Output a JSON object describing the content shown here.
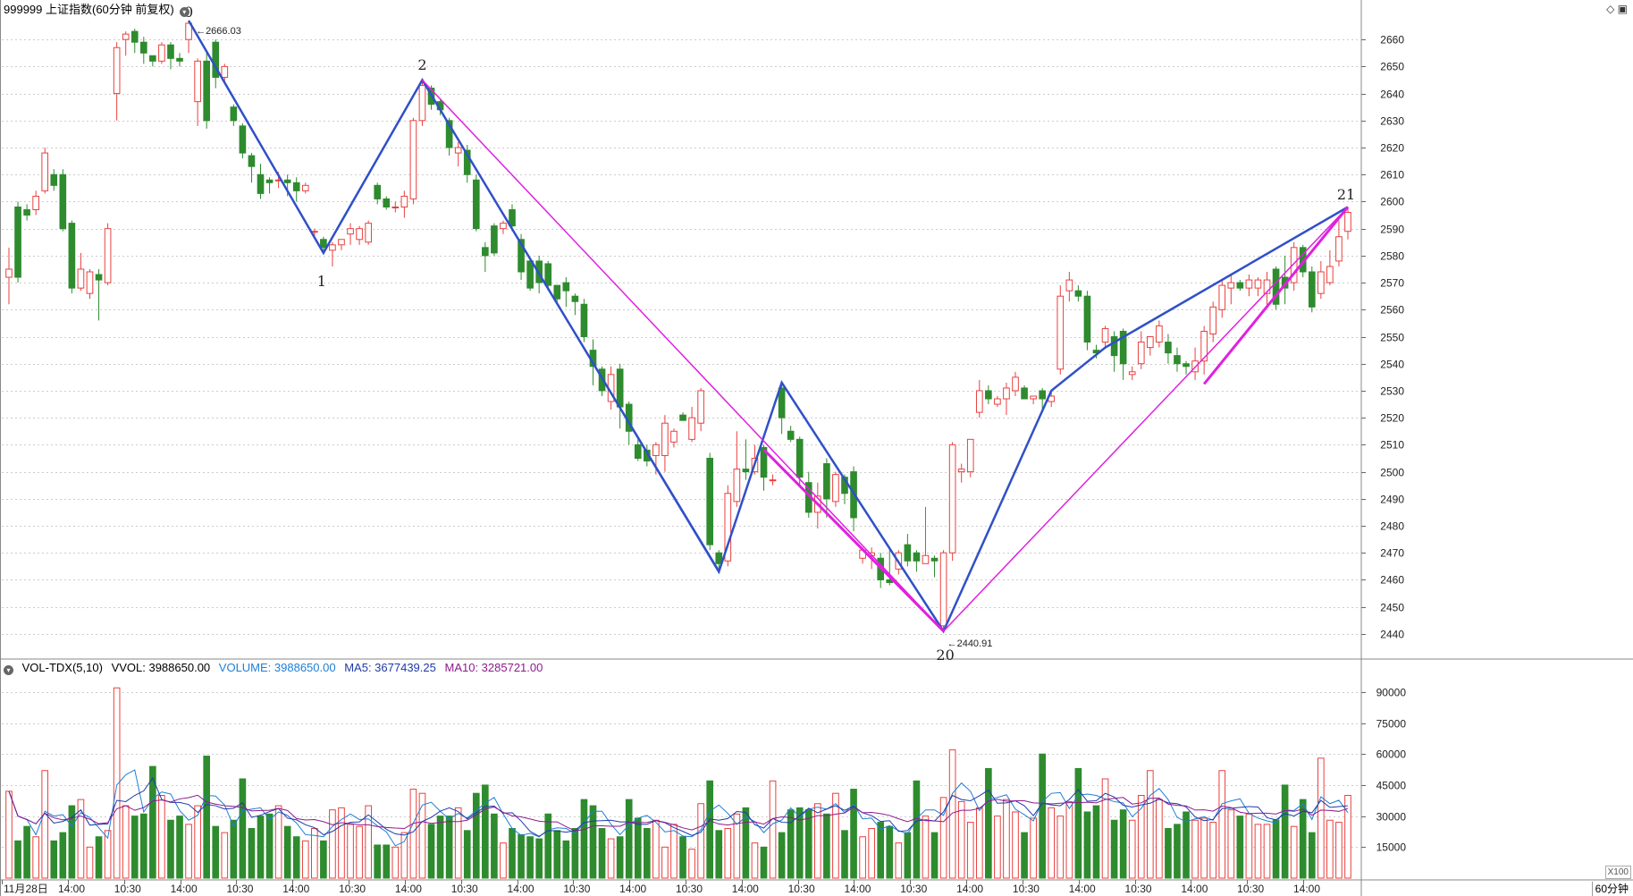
{
  "header": {
    "title": "999999 上证指数(60分钟 前复权)"
  },
  "volume_header": {
    "indicator": "VOL-TDX(5,10)",
    "vvol": "VVOL: 3988650.00",
    "volume": "VOLUME: 3988650.00",
    "ma5": "MA5: 3677439.25",
    "ma10": "MA10: 3285721.00"
  },
  "period_label": "60分钟",
  "scale_label": "X100",
  "colors": {
    "up": "#e8413f",
    "down": "#2e8b2e",
    "volume_line": "#1e7fd6",
    "ma5_line": "#1f3aa8",
    "ma10_line": "#8e1a8e",
    "wave_blue": "#3050c8",
    "wave_magenta": "#e020e0",
    "grid": "#cccccc"
  },
  "chart_data": [
    {
      "type": "candlestick",
      "title": "999999 上证指数(60分钟 前复权)",
      "ylim": [
        2434,
        2668
      ],
      "y_ticks": [
        2440,
        2450,
        2460,
        2470,
        2480,
        2490,
        2500,
        2510,
        2520,
        2530,
        2540,
        2550,
        2560,
        2570,
        2580,
        2590,
        2600,
        2610,
        2620,
        2630,
        2640,
        2650,
        2660
      ],
      "x_tick_labels": [
        "11月28日",
        "14:00",
        "10:30",
        "14:00",
        "10:30",
        "14:00",
        "10:30",
        "14:00",
        "10:30",
        "14:00",
        "10:30",
        "14:00",
        "10:30",
        "14:00",
        "10:30",
        "14:00",
        "10:30",
        "14:00",
        "10:30",
        "14:00",
        "10:30",
        "14:00",
        "10:30",
        "14:00"
      ],
      "candles": [
        [
          2572,
          2575,
          2562,
          2583
        ],
        [
          2598,
          2572,
          2570,
          2600
        ],
        [
          2597,
          2595,
          2593,
          2599
        ],
        [
          2597,
          2602,
          2595,
          2604
        ],
        [
          2604,
          2618,
          2603,
          2620
        ],
        [
          2610,
          2606,
          2604,
          2612
        ],
        [
          2610,
          2590,
          2589,
          2612
        ],
        [
          2592,
          2568,
          2566,
          2593
        ],
        [
          2568,
          2575,
          2567,
          2581
        ],
        [
          2566,
          2574,
          2564,
          2575
        ],
        [
          2573,
          2571,
          2556,
          2575
        ],
        [
          2570,
          2590,
          2569,
          2592
        ],
        [
          2640,
          2657,
          2630,
          2659
        ],
        [
          2660,
          2662,
          2654,
          2663
        ],
        [
          2663,
          2659,
          2655,
          2664
        ],
        [
          2659,
          2655,
          2651,
          2661
        ],
        [
          2654,
          2652,
          2650,
          2654
        ],
        [
          2652,
          2658,
          2651,
          2659
        ],
        [
          2658,
          2653,
          2649,
          2659
        ],
        [
          2653,
          2652,
          2650,
          2655
        ],
        [
          2660,
          2666,
          2655,
          2667
        ],
        [
          2637,
          2652,
          2628,
          2653
        ],
        [
          2652,
          2630,
          2627,
          2656
        ],
        [
          2659,
          2646,
          2642,
          2660
        ],
        [
          2646,
          2650,
          2644,
          2651
        ],
        [
          2635,
          2630,
          2628,
          2636
        ],
        [
          2628,
          2618,
          2616,
          2629
        ],
        [
          2617,
          2613,
          2607,
          2618
        ],
        [
          2610,
          2603,
          2601,
          2614
        ],
        [
          2608,
          2607,
          2603,
          2609
        ],
        [
          2608,
          2608,
          2605,
          2611
        ],
        [
          2608,
          2607,
          2602,
          2610
        ],
        [
          2607,
          2604,
          2600,
          2609
        ],
        [
          2604,
          2606,
          2603,
          2607
        ],
        [
          2589,
          2589,
          2587,
          2590
        ],
        [
          2586,
          2583,
          2581,
          2587
        ],
        [
          2582,
          2584,
          2576,
          2585
        ],
        [
          2584,
          2586,
          2582,
          2586
        ],
        [
          2588,
          2590,
          2584,
          2592
        ],
        [
          2586,
          2590,
          2584,
          2591
        ],
        [
          2585,
          2592,
          2584,
          2593
        ],
        [
          2606,
          2601,
          2599,
          2607
        ],
        [
          2601,
          2598,
          2597,
          2602
        ],
        [
          2598,
          2598,
          2596,
          2600
        ],
        [
          2598,
          2602,
          2594,
          2604
        ],
        [
          2601,
          2630,
          2599,
          2631
        ],
        [
          2630,
          2643,
          2628,
          2645
        ],
        [
          2642,
          2636,
          2634,
          2643
        ],
        [
          2637,
          2634,
          2632,
          2638
        ],
        [
          2630,
          2620,
          2617,
          2631
        ],
        [
          2618,
          2620,
          2613,
          2622
        ],
        [
          2619,
          2610,
          2607,
          2621
        ],
        [
          2608,
          2590,
          2589,
          2610
        ],
        [
          2583,
          2580,
          2574,
          2585
        ],
        [
          2591,
          2581,
          2580,
          2592
        ],
        [
          2590,
          2592,
          2588,
          2593
        ],
        [
          2597,
          2591,
          2589,
          2599
        ],
        [
          2586,
          2574,
          2571,
          2588
        ],
        [
          2578,
          2568,
          2567,
          2579
        ],
        [
          2578,
          2570,
          2566,
          2580
        ],
        [
          2577,
          2569,
          2567,
          2578
        ],
        [
          2569,
          2564,
          2562,
          2569
        ],
        [
          2570,
          2567,
          2561,
          2572
        ],
        [
          2565,
          2563,
          2558,
          2566
        ],
        [
          2562,
          2550,
          2548,
          2564
        ],
        [
          2545,
          2539,
          2532,
          2549
        ],
        [
          2538,
          2530,
          2528,
          2539
        ],
        [
          2526,
          2536,
          2523,
          2539
        ],
        [
          2538,
          2524,
          2516,
          2540
        ],
        [
          2525,
          2515,
          2510,
          2526
        ],
        [
          2510,
          2505,
          2504,
          2512
        ],
        [
          2508,
          2504,
          2502,
          2510
        ],
        [
          2506,
          2510,
          2499,
          2511
        ],
        [
          2506,
          2518,
          2500,
          2521
        ],
        [
          2511,
          2515,
          2509,
          2516
        ],
        [
          2521,
          2519,
          2519,
          2522
        ],
        [
          2512,
          2520,
          2511,
          2524
        ],
        [
          2518,
          2530,
          2515,
          2531
        ],
        [
          2505,
          2473,
          2471,
          2507
        ],
        [
          2470,
          2466,
          2463,
          2471
        ],
        [
          2467,
          2492,
          2465,
          2495
        ],
        [
          2489,
          2501,
          2487,
          2515
        ],
        [
          2501,
          2500,
          2497,
          2512
        ],
        [
          2500,
          2505,
          2499,
          2510
        ],
        [
          2509,
          2498,
          2493,
          2510
        ],
        [
          2497,
          2497,
          2495,
          2499
        ],
        [
          2531,
          2520,
          2514,
          2533
        ],
        [
          2515,
          2512,
          2511,
          2517
        ],
        [
          2512,
          2498,
          2495,
          2513
        ],
        [
          2496,
          2485,
          2483,
          2500
        ],
        [
          2485,
          2491,
          2479,
          2496
        ],
        [
          2503,
          2490,
          2483,
          2505
        ],
        [
          2489,
          2499,
          2487,
          2500
        ],
        [
          2498,
          2492,
          2488,
          2499
        ],
        [
          2500,
          2483,
          2478,
          2502
        ],
        [
          2468,
          2471,
          2466,
          2472
        ],
        [
          2469,
          2470,
          2464,
          2472
        ],
        [
          2468,
          2460,
          2457,
          2470
        ],
        [
          2460,
          2459,
          2458,
          2472
        ],
        [
          2464,
          2470,
          2462,
          2471
        ],
        [
          2473,
          2467,
          2465,
          2477
        ],
        [
          2470,
          2467,
          2463,
          2471
        ],
        [
          2466,
          2469,
          2466,
          2487
        ],
        [
          2468,
          2467,
          2461,
          2469
        ],
        [
          2443,
          2470,
          2441,
          2471
        ],
        [
          2470,
          2510,
          2467,
          2511
        ],
        [
          2500,
          2501,
          2496,
          2503
        ],
        [
          2500,
          2512,
          2498,
          2512
        ],
        [
          2522,
          2530,
          2520,
          2534
        ],
        [
          2530,
          2527,
          2525,
          2532
        ],
        [
          2525,
          2527,
          2524,
          2528
        ],
        [
          2527,
          2531,
          2521,
          2533
        ],
        [
          2530,
          2535,
          2528,
          2537
        ],
        [
          2531,
          2527,
          2527,
          2532
        ],
        [
          2527,
          2528,
          2525,
          2528
        ],
        [
          2530,
          2527,
          2523,
          2531
        ],
        [
          2526,
          2528,
          2524,
          2530
        ],
        [
          2538,
          2565,
          2536,
          2569
        ],
        [
          2567,
          2571,
          2563,
          2574
        ],
        [
          2567,
          2565,
          2563,
          2569
        ],
        [
          2565,
          2548,
          2545,
          2567
        ],
        [
          2545,
          2544,
          2542,
          2547
        ],
        [
          2548,
          2553,
          2546,
          2554
        ],
        [
          2550,
          2543,
          2537,
          2552
        ],
        [
          2552,
          2540,
          2534,
          2553
        ],
        [
          2536,
          2537,
          2534,
          2539
        ],
        [
          2540,
          2548,
          2538,
          2552
        ],
        [
          2546,
          2550,
          2543,
          2550
        ],
        [
          2548,
          2554,
          2546,
          2556
        ],
        [
          2548,
          2544,
          2540,
          2551
        ],
        [
          2543,
          2540,
          2537,
          2546
        ],
        [
          2540,
          2539,
          2536,
          2541
        ],
        [
          2537,
          2541,
          2534,
          2546
        ],
        [
          2541,
          2552,
          2536,
          2554
        ],
        [
          2551,
          2561,
          2548,
          2563
        ],
        [
          2560,
          2569,
          2557,
          2571
        ],
        [
          2568,
          2570,
          2562,
          2573
        ],
        [
          2570,
          2568,
          2567,
          2571
        ],
        [
          2568,
          2571,
          2565,
          2573
        ],
        [
          2568,
          2571,
          2565,
          2572
        ],
        [
          2566,
          2571,
          2561,
          2574
        ],
        [
          2575,
          2562,
          2560,
          2576
        ],
        [
          2572,
          2568,
          2562,
          2580
        ],
        [
          2570,
          2583,
          2567,
          2585
        ],
        [
          2583,
          2574,
          2572,
          2584
        ],
        [
          2574,
          2561,
          2559,
          2576
        ],
        [
          2566,
          2574,
          2564,
          2578
        ],
        [
          2570,
          2576,
          2569,
          2582
        ],
        [
          2578,
          2587,
          2576,
          2593
        ],
        [
          2589,
          2596,
          2586,
          2598
        ]
      ],
      "labels": {
        "high_price": "2666.03",
        "low_price": "2440.91",
        "wave_0": "0",
        "wave_1": "1",
        "wave_2": "2",
        "wave_20": "20",
        "wave_21": "21"
      }
    },
    {
      "type": "bar",
      "title": "VOL-TDX(5,10)",
      "ylim": [
        0,
        96000
      ],
      "y_ticks": [
        15000,
        30000,
        45000,
        60000,
        75000,
        90000
      ],
      "scale": "X100",
      "values": [
        42000,
        18000,
        25000,
        20000,
        52000,
        18000,
        22000,
        35000,
        38000,
        15000,
        20000,
        23000,
        92000,
        35000,
        30000,
        31000,
        54000,
        40000,
        28000,
        30000,
        26000,
        35000,
        59000,
        25000,
        22000,
        28000,
        48000,
        24000,
        30000,
        31000,
        35000,
        25000,
        20000,
        18000,
        24000,
        18000,
        33000,
        34000,
        26000,
        25000,
        35000,
        16000,
        16000,
        15000,
        22000,
        43000,
        41000,
        26000,
        30000,
        30000,
        34000,
        23000,
        41000,
        45000,
        31000,
        17000,
        24000,
        21000,
        20000,
        19000,
        31000,
        23000,
        18000,
        24000,
        38000,
        35000,
        24000,
        19000,
        20000,
        38000,
        29000,
        24000,
        28000,
        15000,
        26000,
        20000,
        14000,
        36000,
        47000,
        23000,
        24000,
        31000,
        34000,
        17000,
        15000,
        47000,
        22000,
        33000,
        34000,
        33000,
        36000,
        31000,
        41000,
        23000,
        43000,
        20000,
        24000,
        27000,
        25000,
        17000,
        22000,
        47000,
        30000,
        22000,
        39000,
        62000,
        37000,
        27000,
        34000,
        53000,
        30000,
        38000,
        32000,
        22000,
        29000,
        60000,
        34000,
        30000,
        37000,
        53000,
        32000,
        35000,
        48000,
        28000,
        33000,
        28000,
        40000,
        52000,
        38000,
        24000,
        26000,
        32000,
        28000,
        29000,
        27000,
        52000,
        33000,
        30000,
        31000,
        26000,
        26000,
        28000,
        45000,
        25000,
        38000,
        22000,
        58000,
        28000,
        27000,
        40000
      ]
    }
  ]
}
